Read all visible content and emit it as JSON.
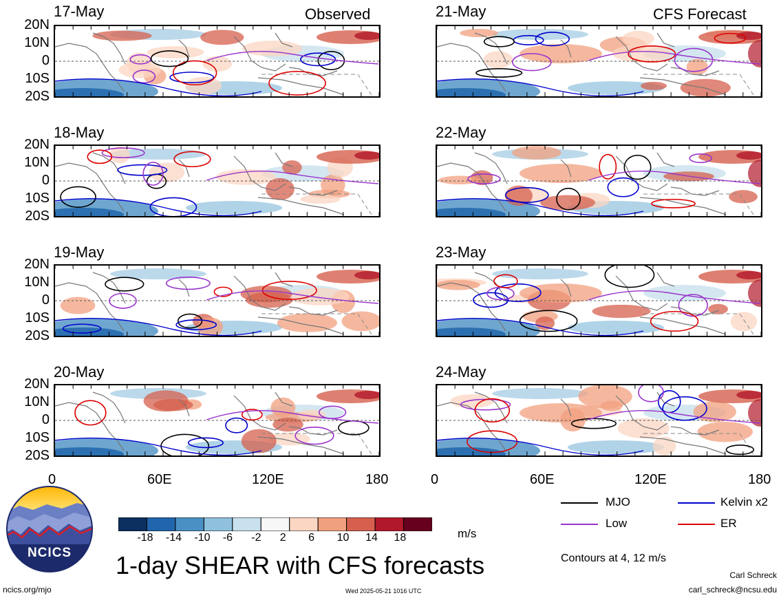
{
  "panels": {
    "observed": [
      {
        "date": "17-May",
        "tag": "Observed"
      },
      {
        "date": "18-May"
      },
      {
        "date": "19-May"
      },
      {
        "date": "20-May"
      }
    ],
    "forecast": [
      {
        "date": "21-May",
        "tag": "CFS Forecast"
      },
      {
        "date": "22-May"
      },
      {
        "date": "23-May"
      },
      {
        "date": "24-May"
      }
    ]
  },
  "lat_labels": [
    "20N",
    "10N",
    "0",
    "10S",
    "20S"
  ],
  "lon_labels": [
    "0",
    "60E",
    "120E",
    "180"
  ],
  "colorbar": {
    "units": "m/s",
    "ticks": [
      "-18",
      "-14",
      "-10",
      "-6",
      "-2",
      "2",
      "6",
      "10",
      "14",
      "18"
    ],
    "colors": [
      "#0b2f5e",
      "#2166ac",
      "#4a90c4",
      "#8fc0dd",
      "#c9e1ee",
      "#f7f7f7",
      "#fbd6c2",
      "#f1a07f",
      "#d6604d",
      "#b2182b",
      "#67001f"
    ]
  },
  "legend": {
    "items": [
      {
        "label": "MJO",
        "color": "#000000"
      },
      {
        "label": "Kelvin x2",
        "color": "#0000cc"
      },
      {
        "label": "Low",
        "color": "#9933cc"
      },
      {
        "label": "ER",
        "color": "#dd0000"
      }
    ],
    "contour_note": "Contours at 4, 12 m/s"
  },
  "title": "1-day SHEAR with CFS forecasts",
  "logo_text": "NCICS",
  "footer": {
    "left": "ncics.org/mjo",
    "center": "Wed 2025-05-21 1016 UTC",
    "credit_name": "Carl Schreck",
    "credit_email": "carl_schreck@ncsu.edu"
  }
}
